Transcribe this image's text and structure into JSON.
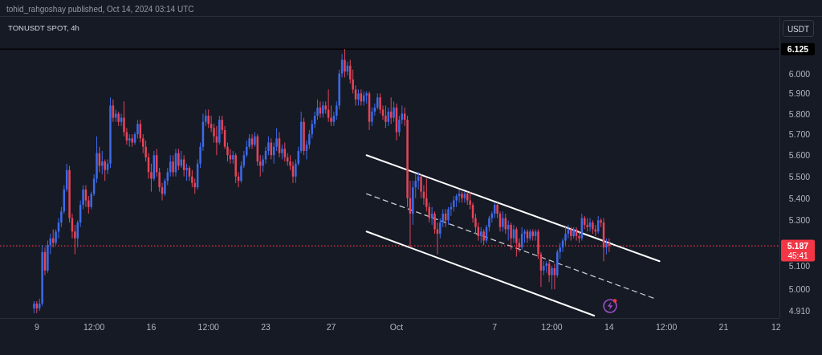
{
  "chart_data": {
    "type": "candlestick",
    "title": "TONUSDT SPOT, 4h",
    "ylabel": "USDT",
    "annotations": [
      "tohid_rahgoshay published, Oct 14, 2024 03:14 UTC",
      "45:41"
    ],
    "log": "y",
    "xlim": [
      "2024-09-06T18:00",
      "2024-10-24T10:00"
    ],
    "ylim": [
      4.88,
      6.29
    ],
    "xticks": [
      {
        "value": "2024-09-09T00:00",
        "label": "9"
      },
      {
        "value": "2024-09-12T12:00",
        "label": "12:00"
      },
      {
        "value": "2024-09-16T00:00",
        "label": "16"
      },
      {
        "value": "2024-09-19T12:00",
        "label": "12:00"
      },
      {
        "value": "2024-09-23T00:00",
        "label": "23"
      },
      {
        "value": "2024-09-27T00:00",
        "label": "27"
      },
      {
        "value": "2024-10-01T00:00",
        "label": "Oct"
      },
      {
        "value": "2024-10-07T00:00",
        "label": "7"
      },
      {
        "value": "2024-10-10T12:00",
        "label": "12:00"
      },
      {
        "value": "2024-10-14T00:00",
        "label": "14"
      },
      {
        "value": "2024-10-17T12:00",
        "label": "12:00"
      },
      {
        "value": "2024-10-21T00:00",
        "label": "21"
      },
      {
        "value": "2024-10-24T05:00",
        "label": "12"
      }
    ],
    "yticks": [
      {
        "value": 4.91,
        "label": "4.910"
      },
      {
        "value": 5,
        "label": "5.000"
      },
      {
        "value": 5.1,
        "label": "5.100"
      },
      {
        "value": 5.3,
        "label": "5.300"
      },
      {
        "value": 5.4,
        "label": "5.400"
      },
      {
        "value": 5.5,
        "label": "5.500"
      },
      {
        "value": 5.6,
        "label": "5.600"
      },
      {
        "value": 5.7,
        "label": "5.700"
      },
      {
        "value": 5.8,
        "label": "5.800"
      },
      {
        "value": 5.9,
        "label": "5.900"
      },
      {
        "value": 6,
        "label": "6.000"
      }
    ],
    "ref_lines": [
      {
        "axis": "y",
        "value": 6.125,
        "label": "6.125",
        "color": "#000000",
        "line_style": "solid"
      },
      {
        "axis": "y",
        "value": 5.187,
        "label": "5.187",
        "color": "#f23645",
        "line_style": "dotted"
      }
    ],
    "x": [
      "2024-09-08T20:00",
      "2024-09-09T00:00",
      "2024-09-09T04:00",
      "2024-09-09T08:00",
      "2024-09-09T12:00",
      "2024-09-09T16:00",
      "2024-09-09T20:00",
      "2024-09-10T00:00",
      "2024-09-10T04:00",
      "2024-09-10T08:00",
      "2024-09-10T12:00",
      "2024-09-10T16:00",
      "2024-09-10T20:00",
      "2024-09-11T00:00",
      "2024-09-11T04:00",
      "2024-09-11T08:00",
      "2024-09-11T12:00",
      "2024-09-11T16:00",
      "2024-09-11T20:00",
      "2024-09-12T00:00",
      "2024-09-12T04:00",
      "2024-09-12T08:00",
      "2024-09-12T12:00",
      "2024-09-12T16:00",
      "2024-09-12T20:00",
      "2024-09-13T00:00",
      "2024-09-13T04:00",
      "2024-09-13T08:00",
      "2024-09-13T12:00",
      "2024-09-13T16:00",
      "2024-09-13T20:00",
      "2024-09-14T00:00",
      "2024-09-14T04:00",
      "2024-09-14T08:00",
      "2024-09-14T12:00",
      "2024-09-14T16:00",
      "2024-09-14T20:00",
      "2024-09-15T00:00",
      "2024-09-15T04:00",
      "2024-09-15T08:00",
      "2024-09-15T12:00",
      "2024-09-15T16:00",
      "2024-09-15T20:00",
      "2024-09-16T00:00",
      "2024-09-16T04:00",
      "2024-09-16T08:00",
      "2024-09-16T12:00",
      "2024-09-16T16:00",
      "2024-09-16T20:00",
      "2024-09-17T00:00",
      "2024-09-17T04:00",
      "2024-09-17T08:00",
      "2024-09-17T12:00",
      "2024-09-17T16:00",
      "2024-09-17T20:00",
      "2024-09-18T00:00",
      "2024-09-18T04:00",
      "2024-09-18T08:00",
      "2024-09-18T12:00",
      "2024-09-18T16:00",
      "2024-09-18T20:00",
      "2024-09-19T00:00",
      "2024-09-19T04:00",
      "2024-09-19T08:00",
      "2024-09-19T12:00",
      "2024-09-19T16:00",
      "2024-09-19T20:00",
      "2024-09-20T00:00",
      "2024-09-20T04:00",
      "2024-09-20T08:00",
      "2024-09-20T12:00",
      "2024-09-20T16:00",
      "2024-09-20T20:00",
      "2024-09-21T00:00",
      "2024-09-21T04:00",
      "2024-09-21T08:00",
      "2024-09-21T12:00",
      "2024-09-21T16:00",
      "2024-09-21T20:00",
      "2024-09-22T00:00",
      "2024-09-22T04:00",
      "2024-09-22T08:00",
      "2024-09-22T12:00",
      "2024-09-22T16:00",
      "2024-09-22T20:00",
      "2024-09-23T00:00",
      "2024-09-23T04:00",
      "2024-09-23T08:00",
      "2024-09-23T12:00",
      "2024-09-23T16:00",
      "2024-09-23T20:00",
      "2024-09-24T00:00",
      "2024-09-24T04:00",
      "2024-09-24T08:00",
      "2024-09-24T12:00",
      "2024-09-24T16:00",
      "2024-09-24T20:00",
      "2024-09-25T00:00",
      "2024-09-25T04:00",
      "2024-09-25T08:00",
      "2024-09-25T12:00",
      "2024-09-25T16:00",
      "2024-09-25T20:00",
      "2024-09-26T00:00",
      "2024-09-26T04:00",
      "2024-09-26T08:00",
      "2024-09-26T12:00",
      "2024-09-26T16:00",
      "2024-09-26T20:00",
      "2024-09-27T00:00",
      "2024-09-27T04:00",
      "2024-09-27T08:00",
      "2024-09-27T12:00",
      "2024-09-27T16:00",
      "2024-09-27T20:00",
      "2024-09-28T00:00",
      "2024-09-28T04:00",
      "2024-09-28T08:00",
      "2024-09-28T12:00",
      "2024-09-28T16:00",
      "2024-09-28T20:00",
      "2024-09-29T00:00",
      "2024-09-29T04:00",
      "2024-09-29T08:00",
      "2024-09-29T12:00",
      "2024-09-29T16:00",
      "2024-09-29T20:00",
      "2024-09-30T00:00",
      "2024-09-30T04:00",
      "2024-09-30T08:00",
      "2024-09-30T12:00",
      "2024-09-30T16:00",
      "2024-09-30T20:00",
      "2024-10-01T00:00",
      "2024-10-01T04:00",
      "2024-10-01T08:00",
      "2024-10-01T12:00",
      "2024-10-01T16:00",
      "2024-10-01T20:00",
      "2024-10-02T00:00",
      "2024-10-02T04:00",
      "2024-10-02T08:00",
      "2024-10-02T12:00",
      "2024-10-02T16:00",
      "2024-10-02T20:00",
      "2024-10-03T00:00",
      "2024-10-03T04:00",
      "2024-10-03T08:00",
      "2024-10-03T12:00",
      "2024-10-03T16:00",
      "2024-10-03T20:00",
      "2024-10-04T00:00",
      "2024-10-04T04:00",
      "2024-10-04T08:00",
      "2024-10-04T12:00",
      "2024-10-04T16:00",
      "2024-10-04T20:00",
      "2024-10-05T00:00",
      "2024-10-05T04:00",
      "2024-10-05T08:00",
      "2024-10-05T12:00",
      "2024-10-05T16:00",
      "2024-10-05T20:00",
      "2024-10-06T00:00",
      "2024-10-06T04:00",
      "2024-10-06T08:00",
      "2024-10-06T12:00",
      "2024-10-06T16:00",
      "2024-10-06T20:00",
      "2024-10-07T00:00",
      "2024-10-07T04:00",
      "2024-10-07T08:00",
      "2024-10-07T12:00",
      "2024-10-07T16:00",
      "2024-10-07T20:00",
      "2024-10-08T00:00",
      "2024-10-08T04:00",
      "2024-10-08T08:00",
      "2024-10-08T12:00",
      "2024-10-08T16:00",
      "2024-10-08T20:00",
      "2024-10-09T00:00",
      "2024-10-09T04:00",
      "2024-10-09T08:00",
      "2024-10-09T12:00",
      "2024-10-09T16:00",
      "2024-10-09T20:00",
      "2024-10-10T00:00",
      "2024-10-10T04:00",
      "2024-10-10T08:00",
      "2024-10-10T12:00",
      "2024-10-10T16:00",
      "2024-10-10T20:00",
      "2024-10-11T00:00",
      "2024-10-11T04:00",
      "2024-10-11T08:00",
      "2024-10-11T12:00",
      "2024-10-11T16:00",
      "2024-10-11T20:00",
      "2024-10-12T00:00",
      "2024-10-12T04:00",
      "2024-10-12T08:00",
      "2024-10-12T12:00",
      "2024-10-12T16:00",
      "2024-10-12T20:00",
      "2024-10-13T00:00",
      "2024-10-13T04:00",
      "2024-10-13T08:00",
      "2024-10-13T12:00",
      "2024-10-13T16:00",
      "2024-10-13T20:00",
      "2024-10-14T00:00"
    ],
    "ohlc": [
      [
        4.92,
        4.95,
        4.9,
        4.94
      ],
      [
        4.94,
        4.95,
        4.9,
        4.92
      ],
      [
        4.92,
        4.96,
        4.91,
        4.94
      ],
      [
        4.94,
        5.19,
        4.93,
        5.16
      ],
      [
        5.16,
        5.18,
        5.06,
        5.08
      ],
      [
        5.08,
        5.21,
        5.07,
        5.19
      ],
      [
        5.19,
        5.24,
        5.15,
        5.22
      ],
      [
        5.22,
        5.26,
        5.18,
        5.2
      ],
      [
        5.2,
        5.26,
        5.19,
        5.25
      ],
      [
        5.25,
        5.31,
        5.22,
        5.29
      ],
      [
        5.29,
        5.36,
        5.27,
        5.34
      ],
      [
        5.34,
        5.46,
        5.33,
        5.44
      ],
      [
        5.44,
        5.56,
        5.43,
        5.53
      ],
      [
        5.53,
        5.55,
        5.29,
        5.31
      ],
      [
        5.31,
        5.33,
        5.22,
        5.25
      ],
      [
        5.25,
        5.28,
        5.15,
        5.22
      ],
      [
        5.22,
        5.3,
        5.18,
        5.29
      ],
      [
        5.29,
        5.39,
        5.27,
        5.37
      ],
      [
        5.37,
        5.46,
        5.35,
        5.44
      ],
      [
        5.44,
        5.46,
        5.36,
        5.39
      ],
      [
        5.39,
        5.41,
        5.33,
        5.36
      ],
      [
        5.36,
        5.43,
        5.35,
        5.42
      ],
      [
        5.42,
        5.51,
        5.41,
        5.49
      ],
      [
        5.49,
        5.69,
        5.47,
        5.61
      ],
      [
        5.61,
        5.64,
        5.52,
        5.55
      ],
      [
        5.55,
        5.62,
        5.51,
        5.57
      ],
      [
        5.57,
        5.58,
        5.48,
        5.53
      ],
      [
        5.53,
        5.58,
        5.51,
        5.56
      ],
      [
        5.56,
        5.88,
        5.54,
        5.84
      ],
      [
        5.84,
        5.87,
        5.76,
        5.78
      ],
      [
        5.78,
        5.82,
        5.76,
        5.8
      ],
      [
        5.8,
        5.81,
        5.74,
        5.76
      ],
      [
        5.76,
        5.8,
        5.74,
        5.78
      ],
      [
        5.78,
        5.86,
        5.69,
        5.71
      ],
      [
        5.71,
        5.73,
        5.65,
        5.67
      ],
      [
        5.67,
        5.7,
        5.64,
        5.68
      ],
      [
        5.68,
        5.7,
        5.64,
        5.66
      ],
      [
        5.66,
        5.71,
        5.65,
        5.7
      ],
      [
        5.7,
        5.77,
        5.68,
        5.75
      ],
      [
        5.75,
        5.77,
        5.66,
        5.68
      ],
      [
        5.68,
        5.7,
        5.61,
        5.64
      ],
      [
        5.64,
        5.67,
        5.57,
        5.59
      ],
      [
        5.59,
        5.61,
        5.49,
        5.52
      ],
      [
        5.52,
        5.56,
        5.43,
        5.49
      ],
      [
        5.49,
        5.62,
        5.48,
        5.6
      ],
      [
        5.6,
        5.63,
        5.5,
        5.52
      ],
      [
        5.52,
        5.54,
        5.43,
        5.45
      ],
      [
        5.45,
        5.47,
        5.39,
        5.42
      ],
      [
        5.42,
        5.49,
        5.41,
        5.48
      ],
      [
        5.48,
        5.54,
        5.46,
        5.52
      ],
      [
        5.52,
        5.6,
        5.5,
        5.57
      ],
      [
        5.57,
        5.6,
        5.5,
        5.52
      ],
      [
        5.52,
        5.63,
        5.5,
        5.61
      ],
      [
        5.61,
        5.63,
        5.53,
        5.55
      ],
      [
        5.55,
        5.62,
        5.54,
        5.58
      ],
      [
        5.58,
        5.6,
        5.5,
        5.53
      ],
      [
        5.53,
        5.56,
        5.48,
        5.54
      ],
      [
        5.54,
        5.55,
        5.48,
        5.5
      ],
      [
        5.5,
        5.53,
        5.45,
        5.47
      ],
      [
        5.47,
        5.49,
        5.42,
        5.45
      ],
      [
        5.45,
        5.58,
        5.44,
        5.56
      ],
      [
        5.56,
        5.66,
        5.54,
        5.64
      ],
      [
        5.64,
        5.8,
        5.62,
        5.76
      ],
      [
        5.76,
        5.82,
        5.74,
        5.79
      ],
      [
        5.79,
        5.82,
        5.73,
        5.75
      ],
      [
        5.75,
        5.79,
        5.71,
        5.73
      ],
      [
        5.73,
        5.75,
        5.66,
        5.69
      ],
      [
        5.69,
        5.74,
        5.6,
        5.66
      ],
      [
        5.66,
        5.79,
        5.65,
        5.77
      ],
      [
        5.77,
        5.79,
        5.7,
        5.72
      ],
      [
        5.72,
        5.74,
        5.63,
        5.64
      ],
      [
        5.64,
        5.66,
        5.57,
        5.6
      ],
      [
        5.6,
        5.63,
        5.56,
        5.58
      ],
      [
        5.58,
        5.62,
        5.56,
        5.6
      ],
      [
        5.6,
        5.61,
        5.47,
        5.5
      ],
      [
        5.5,
        5.52,
        5.45,
        5.48
      ],
      [
        5.48,
        5.57,
        5.47,
        5.55
      ],
      [
        5.55,
        5.62,
        5.54,
        5.6
      ],
      [
        5.6,
        5.67,
        5.59,
        5.64
      ],
      [
        5.64,
        5.7,
        5.63,
        5.68
      ],
      [
        5.68,
        5.7,
        5.63,
        5.65
      ],
      [
        5.65,
        5.71,
        5.64,
        5.69
      ],
      [
        5.69,
        5.7,
        5.55,
        5.57
      ],
      [
        5.57,
        5.6,
        5.5,
        5.55
      ],
      [
        5.55,
        5.6,
        5.52,
        5.58
      ],
      [
        5.58,
        5.64,
        5.56,
        5.62
      ],
      [
        5.62,
        5.69,
        5.6,
        5.66
      ],
      [
        5.66,
        5.68,
        5.58,
        5.6
      ],
      [
        5.6,
        5.66,
        5.56,
        5.64
      ],
      [
        5.64,
        5.73,
        5.62,
        5.68
      ],
      [
        5.68,
        5.71,
        5.59,
        5.61
      ],
      [
        5.61,
        5.65,
        5.58,
        5.63
      ],
      [
        5.63,
        5.66,
        5.57,
        5.59
      ],
      [
        5.59,
        5.61,
        5.55,
        5.57
      ],
      [
        5.57,
        5.6,
        5.53,
        5.55
      ],
      [
        5.55,
        5.57,
        5.47,
        5.5
      ],
      [
        5.5,
        5.58,
        5.47,
        5.56
      ],
      [
        5.56,
        5.64,
        5.55,
        5.62
      ],
      [
        5.62,
        5.81,
        5.61,
        5.76
      ],
      [
        5.76,
        5.78,
        5.6,
        5.62
      ],
      [
        5.62,
        5.67,
        5.58,
        5.65
      ],
      [
        5.65,
        5.72,
        5.63,
        5.7
      ],
      [
        5.7,
        5.77,
        5.68,
        5.75
      ],
      [
        5.75,
        5.81,
        5.73,
        5.79
      ],
      [
        5.79,
        5.87,
        5.77,
        5.83
      ],
      [
        5.83,
        5.86,
        5.78,
        5.8
      ],
      [
        5.8,
        5.86,
        5.78,
        5.84
      ],
      [
        5.84,
        5.86,
        5.8,
        5.82
      ],
      [
        5.82,
        5.92,
        5.76,
        5.78
      ],
      [
        5.78,
        5.84,
        5.74,
        5.76
      ],
      [
        5.76,
        5.81,
        5.74,
        5.79
      ],
      [
        5.79,
        5.86,
        5.77,
        5.84
      ],
      [
        5.84,
        6.02,
        5.82,
        6.0
      ],
      [
        6.0,
        6.1,
        5.98,
        6.07
      ],
      [
        6.07,
        6.125,
        5.98,
        6.01
      ],
      [
        6.01,
        6.06,
        5.99,
        6.04
      ],
      [
        6.04,
        6.07,
        5.95,
        5.97
      ],
      [
        5.97,
        6.02,
        5.9,
        5.92
      ],
      [
        5.92,
        5.94,
        5.84,
        5.87
      ],
      [
        5.87,
        5.92,
        5.84,
        5.9
      ],
      [
        5.9,
        5.92,
        5.84,
        5.86
      ],
      [
        5.86,
        5.91,
        5.84,
        5.89
      ],
      [
        5.89,
        5.91,
        5.85,
        5.9
      ],
      [
        5.9,
        5.91,
        5.72,
        5.76
      ],
      [
        5.76,
        5.83,
        5.74,
        5.81
      ],
      [
        5.81,
        5.85,
        5.79,
        5.83
      ],
      [
        5.83,
        5.9,
        5.82,
        5.88
      ],
      [
        5.88,
        5.9,
        5.8,
        5.82
      ],
      [
        5.82,
        5.84,
        5.77,
        5.79
      ],
      [
        5.79,
        5.84,
        5.73,
        5.76
      ],
      [
        5.76,
        5.83,
        5.74,
        5.81
      ],
      [
        5.81,
        5.88,
        5.75,
        5.78
      ],
      [
        5.78,
        5.86,
        5.76,
        5.83
      ],
      [
        5.83,
        5.85,
        5.67,
        5.71
      ],
      [
        5.71,
        5.79,
        5.69,
        5.77
      ],
      [
        5.77,
        5.84,
        5.75,
        5.8
      ],
      [
        5.8,
        5.83,
        5.74,
        5.77
      ],
      [
        5.77,
        5.79,
        5.36,
        5.4
      ],
      [
        5.4,
        5.48,
        5.18,
        5.33
      ],
      [
        5.33,
        5.48,
        5.28,
        5.45
      ],
      [
        5.45,
        5.51,
        5.4,
        5.48
      ],
      [
        5.48,
        5.52,
        5.44,
        5.5
      ],
      [
        5.5,
        5.51,
        5.4,
        5.43
      ],
      [
        5.43,
        5.46,
        5.37,
        5.4
      ],
      [
        5.4,
        5.49,
        5.34,
        5.36
      ],
      [
        5.36,
        5.38,
        5.29,
        5.31
      ],
      [
        5.31,
        5.36,
        5.28,
        5.33
      ],
      [
        5.33,
        5.34,
        5.24,
        5.26
      ],
      [
        5.26,
        5.29,
        5.15,
        5.24
      ],
      [
        5.24,
        5.31,
        5.22,
        5.29
      ],
      [
        5.29,
        5.35,
        5.27,
        5.33
      ],
      [
        5.33,
        5.35,
        5.27,
        5.3
      ],
      [
        5.3,
        5.36,
        5.28,
        5.35
      ],
      [
        5.35,
        5.38,
        5.32,
        5.36
      ],
      [
        5.36,
        5.41,
        5.34,
        5.39
      ],
      [
        5.39,
        5.42,
        5.36,
        5.41
      ],
      [
        5.41,
        5.44,
        5.38,
        5.42
      ],
      [
        5.42,
        5.43,
        5.38,
        5.4
      ],
      [
        5.4,
        5.43,
        5.38,
        5.42
      ],
      [
        5.42,
        5.43,
        5.37,
        5.39
      ],
      [
        5.39,
        5.43,
        5.35,
        5.37
      ],
      [
        5.37,
        5.38,
        5.29,
        5.31
      ],
      [
        5.31,
        5.33,
        5.24,
        5.27
      ],
      [
        5.27,
        5.29,
        5.21,
        5.23
      ],
      [
        5.23,
        5.27,
        5.2,
        5.25
      ],
      [
        5.25,
        5.26,
        5.19,
        5.21
      ],
      [
        5.21,
        5.28,
        5.2,
        5.27
      ],
      [
        5.27,
        5.32,
        5.25,
        5.31
      ],
      [
        5.31,
        5.34,
        5.29,
        5.33
      ],
      [
        5.33,
        5.38,
        5.31,
        5.37
      ],
      [
        5.37,
        5.38,
        5.31,
        5.33
      ],
      [
        5.33,
        5.34,
        5.25,
        5.27
      ],
      [
        5.27,
        5.34,
        5.25,
        5.31
      ],
      [
        5.31,
        5.33,
        5.24,
        5.26
      ],
      [
        5.26,
        5.3,
        5.21,
        5.28
      ],
      [
        5.28,
        5.29,
        5.17,
        5.22
      ],
      [
        5.22,
        5.28,
        5.2,
        5.26
      ],
      [
        5.26,
        5.27,
        5.14,
        5.2
      ],
      [
        5.2,
        5.22,
        5.16,
        5.18
      ],
      [
        5.18,
        5.27,
        5.17,
        5.24
      ],
      [
        5.24,
        5.26,
        5.2,
        5.25
      ],
      [
        5.25,
        5.26,
        5.2,
        5.22
      ],
      [
        5.22,
        5.26,
        5.21,
        5.25
      ],
      [
        5.25,
        5.26,
        5.21,
        5.23
      ],
      [
        5.23,
        5.26,
        5.21,
        5.25
      ],
      [
        5.25,
        5.26,
        5.13,
        5.15
      ],
      [
        5.15,
        5.16,
        5.01,
        5.08
      ],
      [
        5.08,
        5.12,
        5.06,
        5.1
      ],
      [
        5.1,
        5.12,
        5.07,
        5.11
      ],
      [
        5.11,
        5.12,
        5.03,
        5.06
      ],
      [
        5.06,
        5.1,
        5.0,
        5.09
      ],
      [
        5.09,
        5.11,
        5.0,
        5.06
      ],
      [
        5.06,
        5.17,
        5.05,
        5.16
      ],
      [
        5.16,
        5.2,
        5.13,
        5.18
      ],
      [
        5.18,
        5.22,
        5.16,
        5.21
      ],
      [
        5.21,
        5.27,
        5.19,
        5.24
      ],
      [
        5.24,
        5.28,
        5.22,
        5.26
      ],
      [
        5.26,
        5.27,
        5.21,
        5.23
      ],
      [
        5.23,
        5.27,
        5.22,
        5.26
      ],
      [
        5.26,
        5.27,
        5.21,
        5.23
      ],
      [
        5.23,
        5.25,
        5.2,
        5.22
      ],
      [
        5.22,
        5.33,
        5.21,
        5.31
      ],
      [
        5.31,
        5.32,
        5.26,
        5.28
      ],
      [
        5.28,
        5.31,
        5.25,
        5.27
      ],
      [
        5.27,
        5.31,
        5.25,
        5.29
      ],
      [
        5.29,
        5.3,
        5.24,
        5.26
      ],
      [
        5.26,
        5.28,
        5.23,
        5.25
      ],
      [
        5.25,
        5.32,
        5.24,
        5.3
      ],
      [
        5.3,
        5.31,
        5.27,
        5.29
      ],
      [
        5.29,
        5.31,
        5.12,
        5.18
      ],
      [
        5.18,
        5.22,
        5.15,
        5.2
      ],
      [
        5.2,
        5.22,
        5.16,
        5.187
      ]
    ],
    "colors": [
      "#3d6ae8",
      "#e5455a",
      "#3d6ae8",
      "#3d6ae8",
      "#e5455a",
      "#3d6ae8",
      "#3d6ae8",
      "#e5455a",
      "#3d6ae8",
      "#3d6ae8",
      "#3d6ae8",
      "#3d6ae8",
      "#3d6ae8",
      "#e5455a",
      "#e5455a",
      "#e5455a",
      "#3d6ae8",
      "#3d6ae8",
      "#3d6ae8",
      "#e5455a",
      "#e5455a",
      "#3d6ae8",
      "#3d6ae8",
      "#3d6ae8",
      "#e5455a",
      "#3d6ae8",
      "#e5455a",
      "#3d6ae8",
      "#3d6ae8",
      "#e5455a",
      "#3d6ae8",
      "#e5455a",
      "#3d6ae8",
      "#e5455a",
      "#e5455a",
      "#3d6ae8",
      "#e5455a",
      "#3d6ae8",
      "#3d6ae8",
      "#e5455a",
      "#e5455a",
      "#e5455a",
      "#e5455a",
      "#e5455a",
      "#3d6ae8",
      "#e5455a",
      "#e5455a",
      "#e5455a",
      "#3d6ae8",
      "#3d6ae8",
      "#3d6ae8",
      "#e5455a",
      "#3d6ae8",
      "#e5455a",
      "#3d6ae8",
      "#e5455a",
      "#3d6ae8",
      "#e5455a",
      "#e5455a",
      "#e5455a",
      "#3d6ae8",
      "#3d6ae8",
      "#3d6ae8",
      "#3d6ae8",
      "#e5455a",
      "#e5455a",
      "#e5455a",
      "#e5455a",
      "#3d6ae8",
      "#e5455a",
      "#e5455a",
      "#e5455a",
      "#e5455a",
      "#3d6ae8",
      "#e5455a",
      "#e5455a",
      "#3d6ae8",
      "#3d6ae8",
      "#3d6ae8",
      "#3d6ae8",
      "#e5455a",
      "#3d6ae8",
      "#e5455a",
      "#e5455a",
      "#3d6ae8",
      "#3d6ae8",
      "#3d6ae8",
      "#e5455a",
      "#3d6ae8",
      "#3d6ae8",
      "#e5455a",
      "#3d6ae8",
      "#e5455a",
      "#e5455a",
      "#e5455a",
      "#e5455a",
      "#3d6ae8",
      "#3d6ae8",
      "#3d6ae8",
      "#e5455a",
      "#3d6ae8",
      "#3d6ae8",
      "#3d6ae8",
      "#3d6ae8",
      "#3d6ae8",
      "#e5455a",
      "#3d6ae8",
      "#e5455a",
      "#e5455a",
      "#e5455a",
      "#3d6ae8",
      "#3d6ae8",
      "#3d6ae8",
      "#3d6ae8",
      "#e5455a",
      "#3d6ae8",
      "#e5455a",
      "#e5455a",
      "#e5455a",
      "#3d6ae8",
      "#e5455a",
      "#3d6ae8",
      "#3d6ae8",
      "#e5455a",
      "#3d6ae8",
      "#3d6ae8",
      "#3d6ae8",
      "#e5455a",
      "#e5455a",
      "#e5455a",
      "#3d6ae8",
      "#e5455a",
      "#3d6ae8",
      "#e5455a",
      "#3d6ae8",
      "#3d6ae8",
      "#e5455a",
      "#e5455a",
      "#e5455a",
      "#3d6ae8",
      "#3d6ae8",
      "#3d6ae8",
      "#e5455a",
      "#e5455a",
      "#e5455a",
      "#e5455a",
      "#3d6ae8",
      "#e5455a",
      "#e5455a",
      "#3d6ae8",
      "#3d6ae8",
      "#e5455a",
      "#3d6ae8",
      "#3d6ae8",
      "#3d6ae8",
      "#3d6ae8",
      "#3d6ae8",
      "#e5455a",
      "#3d6ae8",
      "#e5455a",
      "#e5455a",
      "#e5455a",
      "#e5455a",
      "#e5455a",
      "#3d6ae8",
      "#e5455a",
      "#3d6ae8",
      "#3d6ae8",
      "#3d6ae8",
      "#3d6ae8",
      "#e5455a",
      "#e5455a",
      "#3d6ae8",
      "#e5455a",
      "#3d6ae8",
      "#e5455a",
      "#3d6ae8",
      "#e5455a",
      "#e5455a",
      "#3d6ae8",
      "#3d6ae8",
      "#e5455a",
      "#3d6ae8",
      "#e5455a",
      "#3d6ae8",
      "#e5455a",
      "#e5455a",
      "#3d6ae8",
      "#3d6ae8",
      "#e5455a",
      "#3d6ae8",
      "#e5455a",
      "#3d6ae8",
      "#3d6ae8",
      "#3d6ae8",
      "#3d6ae8",
      "#3d6ae8",
      "#e5455a",
      "#3d6ae8",
      "#e5455a",
      "#e5455a",
      "#3d6ae8",
      "#e5455a",
      "#e5455a",
      "#3d6ae8",
      "#e5455a",
      "#e5455a",
      "#3d6ae8",
      "#e5455a",
      "#e5455a",
      "#3d6ae8",
      "#e5455a"
    ],
    "series": [
      {
        "type": "line",
        "color": "#ffffff",
        "line_style": "solid",
        "x": [
          "2024-09-29T04:00",
          "2024-10-17T02:00"
        ],
        "values": [
          5.6,
          5.12
        ]
      },
      {
        "type": "line",
        "color": "#c9cbd1",
        "line_style": "dashed",
        "x": [
          "2024-09-29T04:00",
          "2024-10-16T20:00"
        ],
        "values": [
          5.42,
          4.96
        ]
      },
      {
        "type": "line",
        "color": "#ffffff",
        "line_style": "solid",
        "x": [
          "2024-09-29T04:00",
          "2024-10-13T02:00"
        ],
        "values": [
          5.25,
          4.89
        ]
      }
    ]
  }
}
